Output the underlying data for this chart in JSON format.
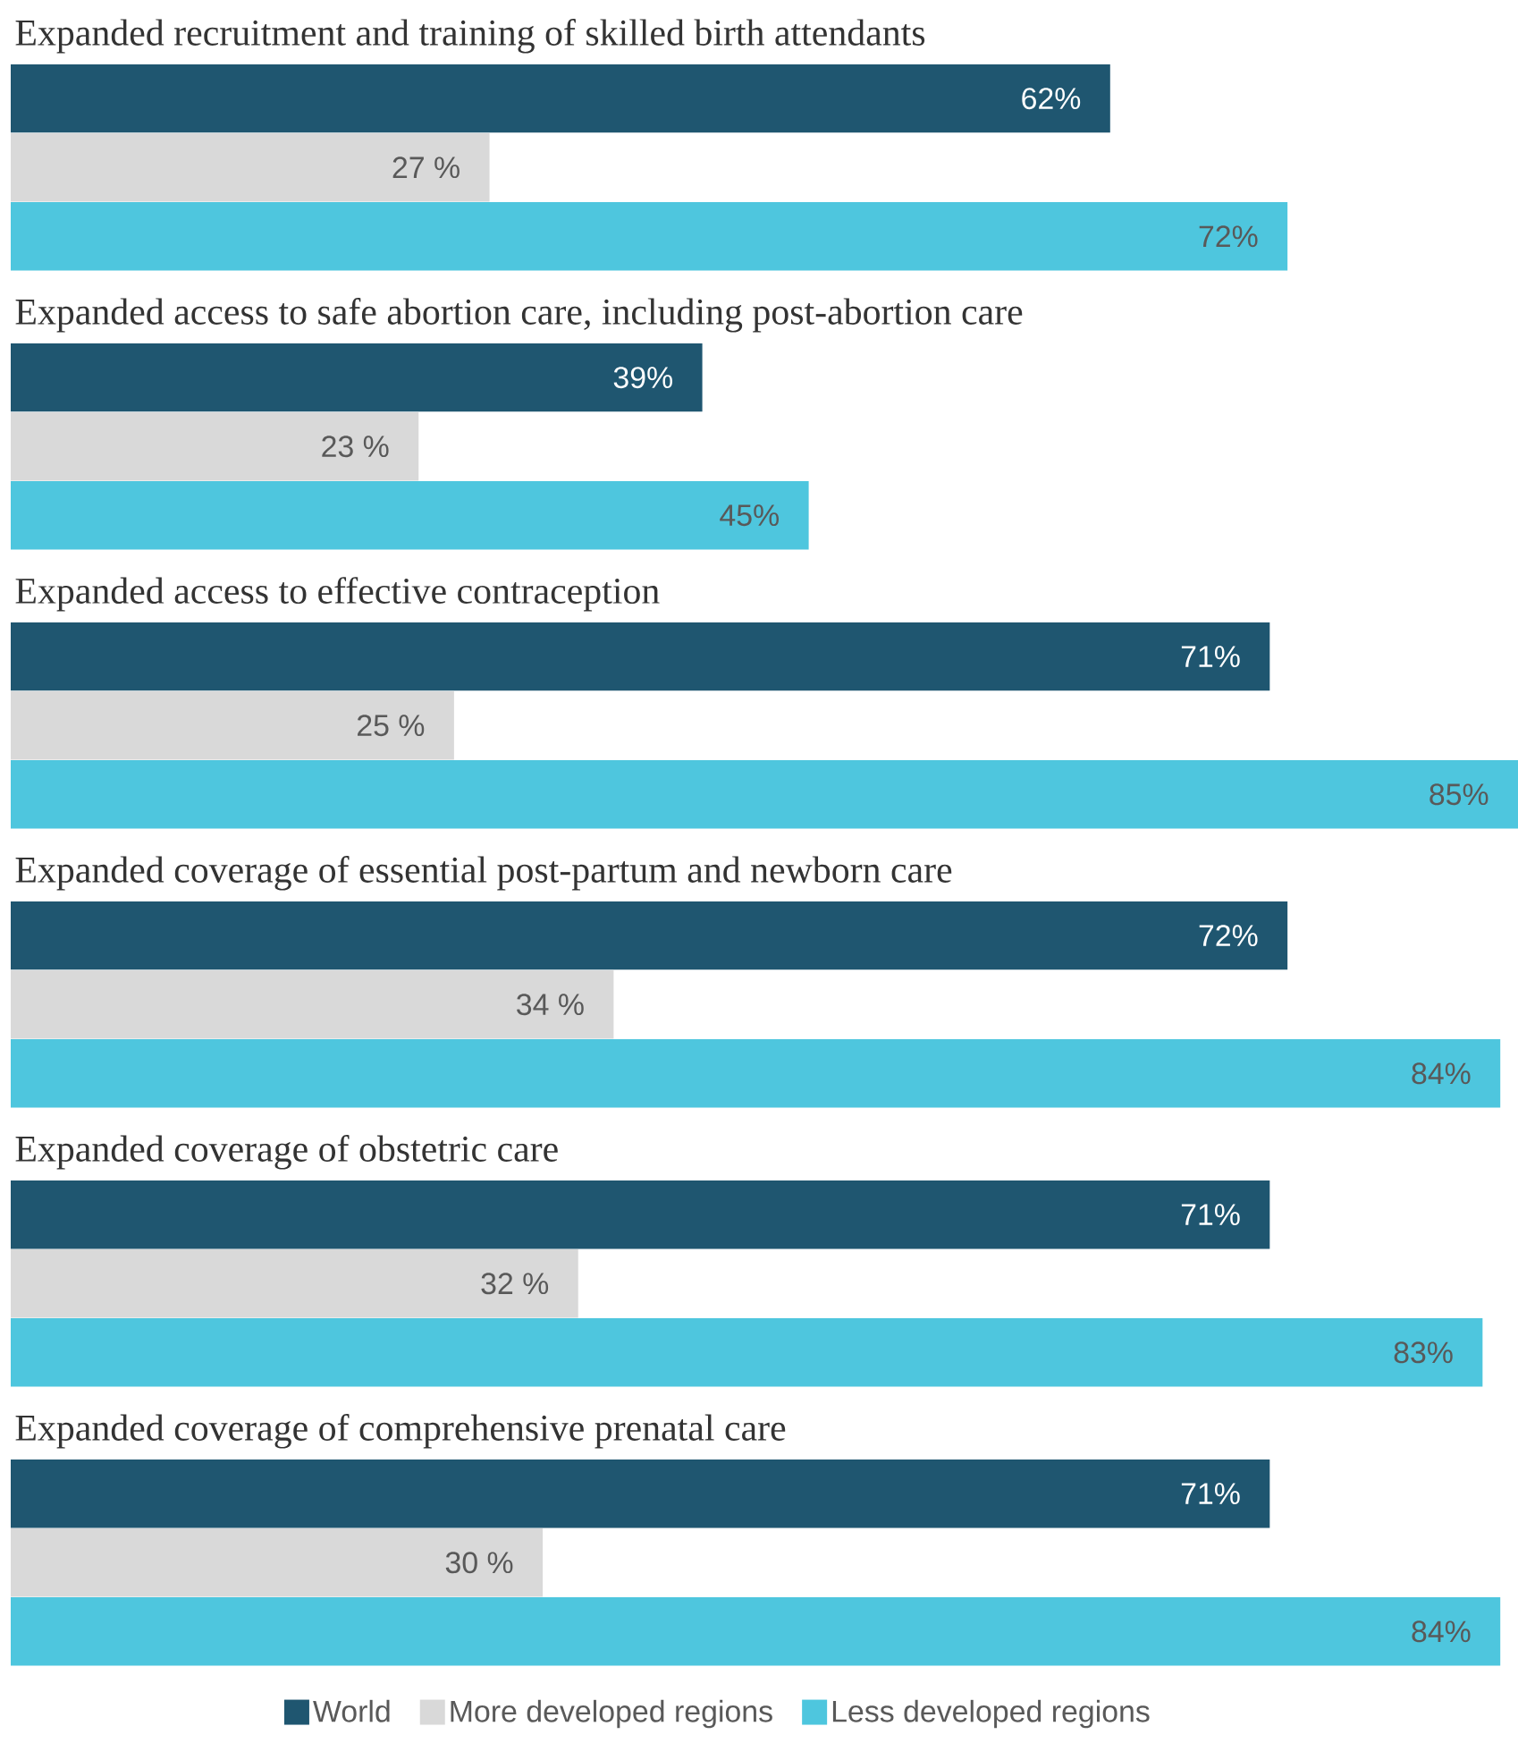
{
  "chart_data": {
    "type": "bar",
    "orientation": "horizontal",
    "legend": "bottom",
    "xlim": [
      0,
      85
    ],
    "categories": [
      "Expanded recruitment and training of skilled birth attendants",
      "Expanded access to safe abortion care, including post-abortion care",
      "Expanded access to effective contraception",
      "Expanded coverage of essential post-partum and newborn care",
      "Expanded coverage of obstetric care",
      "Expanded coverage of comprehensive prenatal care"
    ],
    "series": [
      {
        "name": "World",
        "color": "#1f5670",
        "values": [
          62,
          39,
          71,
          72,
          71,
          71
        ],
        "value_labels": [
          "62%",
          "39%",
          "71%",
          "72%",
          "71%",
          "71%"
        ]
      },
      {
        "name": "More developed regions",
        "color": "#d9d9d9",
        "values": [
          27,
          23,
          25,
          34,
          32,
          30
        ],
        "value_labels": [
          "27 %",
          "23 %",
          "25 %",
          "34 %",
          "32 %",
          "30 %"
        ]
      },
      {
        "name": "Less developed regions",
        "color": "#4ec6de",
        "values": [
          72,
          45,
          85,
          84,
          83,
          84
        ],
        "value_labels": [
          "72%",
          "45%",
          "85%",
          "84%",
          "83%",
          "84%"
        ]
      }
    ]
  }
}
